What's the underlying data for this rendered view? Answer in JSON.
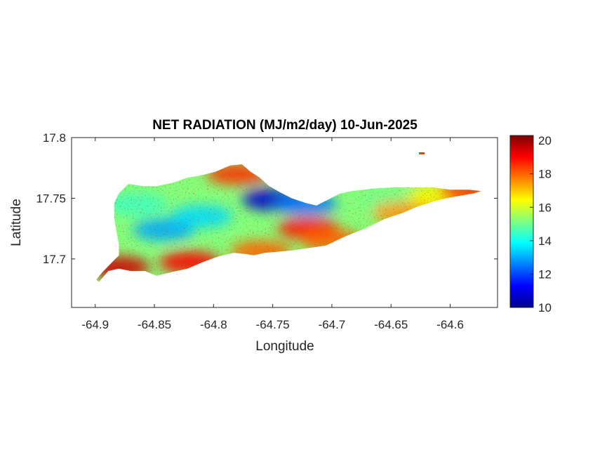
{
  "figure": {
    "title": "NET RADIATION (MJ/m2/day) 10-Jun-2025",
    "xlabel": "Longitude",
    "ylabel": "Latitude"
  },
  "chart_data": {
    "type": "heatmap",
    "title": "NET RADIATION (MJ/m2/day) 10-Jun-2025",
    "xlabel": "Longitude",
    "ylabel": "Latitude",
    "xlim": [
      -64.92,
      -64.56
    ],
    "ylim": [
      17.66,
      17.8
    ],
    "x_ticks": [
      -64.9,
      -64.85,
      -64.8,
      -64.75,
      -64.7,
      -64.65,
      -64.6
    ],
    "x_tick_labels": [
      "-64.9",
      "-64.85",
      "-64.8",
      "-64.75",
      "-64.7",
      "-64.65",
      "-64.6"
    ],
    "y_ticks": [
      17.7,
      17.75,
      17.8
    ],
    "y_tick_labels": [
      "17.7",
      "17.75",
      "17.8"
    ],
    "colorbar": {
      "colormap": "jet",
      "range": [
        10,
        20.3
      ],
      "ticks": [
        10,
        12,
        14,
        16,
        18,
        20
      ],
      "tick_labels": [
        "10",
        "12",
        "14",
        "16",
        "18",
        "20"
      ]
    },
    "island_outline_lonlat": [
      [
        -64.897,
        17.681
      ],
      [
        -64.889,
        17.69
      ],
      [
        -64.88,
        17.692
      ],
      [
        -64.87,
        17.69
      ],
      [
        -64.858,
        17.69
      ],
      [
        -64.848,
        17.686
      ],
      [
        -64.836,
        17.689
      ],
      [
        -64.822,
        17.692
      ],
      [
        -64.81,
        17.697
      ],
      [
        -64.796,
        17.702
      ],
      [
        -64.783,
        17.705
      ],
      [
        -64.773,
        17.704
      ],
      [
        -64.766,
        17.703
      ],
      [
        -64.757,
        17.705
      ],
      [
        -64.745,
        17.706
      ],
      [
        -64.733,
        17.707
      ],
      [
        -64.719,
        17.709
      ],
      [
        -64.705,
        17.711
      ],
      [
        -64.69,
        17.718
      ],
      [
        -64.672,
        17.725
      ],
      [
        -64.655,
        17.733
      ],
      [
        -64.64,
        17.738
      ],
      [
        -64.628,
        17.743
      ],
      [
        -64.615,
        17.747
      ],
      [
        -64.603,
        17.75
      ],
      [
        -64.592,
        17.752
      ],
      [
        -64.58,
        17.754
      ],
      [
        -64.574,
        17.756
      ],
      [
        -64.584,
        17.757
      ],
      [
        -64.6,
        17.757
      ],
      [
        -64.615,
        17.759
      ],
      [
        -64.63,
        17.759
      ],
      [
        -64.648,
        17.759
      ],
      [
        -64.666,
        17.758
      ],
      [
        -64.683,
        17.756
      ],
      [
        -64.693,
        17.754
      ],
      [
        -64.703,
        17.749
      ],
      [
        -64.713,
        17.744
      ],
      [
        -64.722,
        17.746
      ],
      [
        -64.734,
        17.75
      ],
      [
        -64.744,
        17.755
      ],
      [
        -64.753,
        17.76
      ],
      [
        -64.761,
        17.767
      ],
      [
        -64.769,
        17.772
      ],
      [
        -64.776,
        17.778
      ],
      [
        -64.786,
        17.777
      ],
      [
        -64.798,
        17.772
      ],
      [
        -64.81,
        17.769
      ],
      [
        -64.822,
        17.767
      ],
      [
        -64.834,
        17.763
      ],
      [
        -64.848,
        17.76
      ],
      [
        -64.86,
        17.76
      ],
      [
        -64.872,
        17.762
      ],
      [
        -64.88,
        17.754
      ],
      [
        -64.884,
        17.746
      ],
      [
        -64.884,
        17.734
      ],
      [
        -64.882,
        17.722
      ],
      [
        -64.88,
        17.712
      ],
      [
        -64.88,
        17.703
      ],
      [
        -64.887,
        17.696
      ],
      [
        -64.894,
        17.689
      ],
      [
        -64.899,
        17.683
      ]
    ],
    "field_hotspots": [
      {
        "lon": -64.75,
        "lat": 17.749,
        "value": 10.8
      },
      {
        "lon": -64.722,
        "lat": 17.745,
        "value": 12.5
      },
      {
        "lon": -64.842,
        "lat": 17.724,
        "value": 13.0
      },
      {
        "lon": -64.81,
        "lat": 17.735,
        "value": 13.5
      },
      {
        "lon": -64.865,
        "lat": 17.745,
        "value": 14.5
      },
      {
        "lon": -64.65,
        "lat": 17.748,
        "value": 15.0
      },
      {
        "lon": -64.61,
        "lat": 17.752,
        "value": 16.5
      },
      {
        "lon": -64.78,
        "lat": 17.77,
        "value": 18.5
      },
      {
        "lon": -64.72,
        "lat": 17.725,
        "value": 18.8
      },
      {
        "lon": -64.7,
        "lat": 17.715,
        "value": 18.0
      },
      {
        "lon": -64.88,
        "lat": 17.693,
        "value": 19.5
      },
      {
        "lon": -64.82,
        "lat": 17.697,
        "value": 19.0
      },
      {
        "lon": -64.76,
        "lat": 17.706,
        "value": 18.0
      },
      {
        "lon": -64.64,
        "lat": 17.738,
        "value": 17.5
      },
      {
        "lon": -64.583,
        "lat": 17.755,
        "value": 18.5
      }
    ],
    "islet": {
      "lon": -64.624,
      "lat": 17.787,
      "value": 18.5
    }
  }
}
